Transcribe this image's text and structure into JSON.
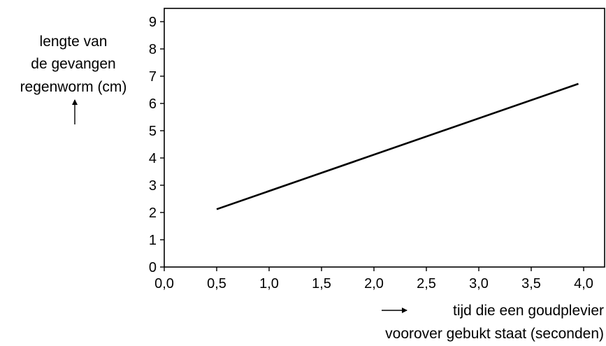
{
  "chart_data": {
    "type": "line",
    "title": "",
    "ylabel_lines": [
      "lengte van",
      "de gevangen",
      "regenworm (cm)"
    ],
    "xlabel_lines": [
      "tijd die een goudplevier",
      "voorover gebukt staat (seconden)"
    ],
    "xlim": [
      0,
      4
    ],
    "ylim": [
      0,
      9
    ],
    "x_ticks": [
      0,
      0.5,
      1,
      1.5,
      2,
      2.5,
      3,
      3.5,
      4
    ],
    "x_tick_labels": [
      "0,0",
      "0,5",
      "1,0",
      "1,5",
      "2,0",
      "2,5",
      "3,0",
      "3,5",
      "4,0"
    ],
    "y_ticks": [
      0,
      1,
      2,
      3,
      4,
      5,
      6,
      7,
      8,
      9
    ],
    "y_tick_labels": [
      "0",
      "1",
      "2",
      "3",
      "4",
      "5",
      "6",
      "7",
      "8",
      "9"
    ],
    "grid": false,
    "series": [
      {
        "x": [
          0.5,
          3.95
        ],
        "y": [
          2.12,
          6.72
        ],
        "color": "#000000"
      }
    ]
  }
}
